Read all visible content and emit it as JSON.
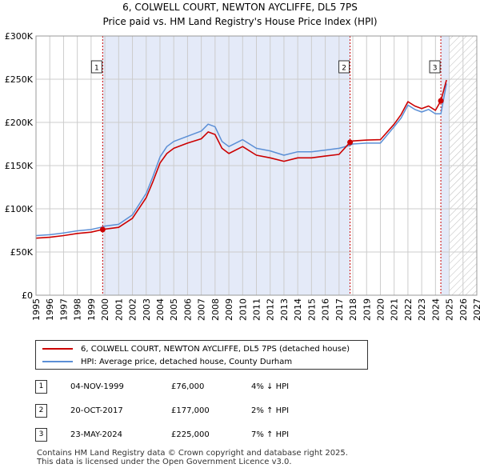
{
  "chart_data": {
    "type": "line",
    "title": "6, COLWELL COURT, NEWTON AYCLIFFE, DL5 7PS",
    "subtitle": "Price paid vs. HM Land Registry's House Price Index (HPI)",
    "xlim": [
      1995,
      2027
    ],
    "ylim": [
      0,
      300000
    ],
    "y_ticks": [
      {
        "value": 0,
        "label": "£0"
      },
      {
        "value": 50000,
        "label": "£50K"
      },
      {
        "value": 100000,
        "label": "£100K"
      },
      {
        "value": 150000,
        "label": "£150K"
      },
      {
        "value": 200000,
        "label": "£200K"
      },
      {
        "value": 250000,
        "label": "£250K"
      },
      {
        "value": 300000,
        "label": "£300K"
      }
    ],
    "x_ticks": [
      "1995",
      "1996",
      "1997",
      "1998",
      "1999",
      "2000",
      "2001",
      "2002",
      "2003",
      "2004",
      "2005",
      "2006",
      "2007",
      "2008",
      "2009",
      "2010",
      "2011",
      "2012",
      "2013",
      "2014",
      "2015",
      "2016",
      "2017",
      "2018",
      "2019",
      "2020",
      "2021",
      "2022",
      "2023",
      "2024",
      "2025",
      "2026",
      "2027"
    ],
    "grid": true,
    "shaded_periods": [
      [
        1999.84,
        2017.8
      ],
      [
        2024.39,
        2025.0
      ]
    ],
    "hatched_after": 2025.0,
    "series": [
      {
        "name": "HPI: Average price, detached house, County Durham",
        "color": "#5b8fd6",
        "x": [
          1995,
          1996,
          1997,
          1998,
          1999,
          1999.84,
          2000,
          2001,
          2002,
          2003,
          2003.5,
          2004,
          2004.5,
          2005,
          2006,
          2007,
          2007.5,
          2008,
          2008.5,
          2009,
          2010,
          2011,
          2012,
          2013,
          2014,
          2015,
          2016,
          2017,
          2017.8,
          2018,
          2019,
          2020,
          2021,
          2021.5,
          2022,
          2022.5,
          2023,
          2023.5,
          2024,
          2024.39,
          2024.8
        ],
        "values": [
          69000,
          70000,
          72000,
          74500,
          76000,
          79000,
          80000,
          82000,
          93000,
          118000,
          138000,
          160000,
          172000,
          178000,
          184000,
          190000,
          198000,
          195000,
          178000,
          172000,
          180000,
          170000,
          167000,
          162000,
          166000,
          166000,
          168000,
          170000,
          173500,
          175000,
          176000,
          176000,
          195000,
          205000,
          220000,
          215000,
          212000,
          215000,
          210000,
          210000,
          245000
        ]
      },
      {
        "name": "6, COLWELL COURT, NEWTON AYCLIFFE, DL5 7PS (detached house)",
        "color": "#cc0000",
        "x": [
          1995,
          1996,
          1997,
          1998,
          1999,
          1999.84,
          2000,
          2001,
          2002,
          2003,
          2003.5,
          2004,
          2004.5,
          2005,
          2006,
          2007,
          2007.5,
          2008,
          2008.5,
          2009,
          2010,
          2011,
          2012,
          2013,
          2014,
          2015,
          2016,
          2017,
          2017.8,
          2018,
          2019,
          2020,
          2021,
          2021.5,
          2022,
          2022.5,
          2023,
          2023.5,
          2024,
          2024.39,
          2024.8
        ],
        "values": [
          66000,
          67000,
          69000,
          71500,
          73000,
          76000,
          76500,
          78500,
          89000,
          113000,
          132000,
          153000,
          164000,
          170000,
          176000,
          181000,
          189000,
          186000,
          170000,
          164000,
          172000,
          162000,
          159000,
          155000,
          159000,
          159000,
          161000,
          163000,
          177000,
          178500,
          179500,
          180000,
          198000,
          209000,
          224000,
          219000,
          216000,
          219000,
          214000,
          225000,
          249000
        ]
      }
    ],
    "sales": [
      {
        "num": "1",
        "x": 1999.84,
        "value": 76000
      },
      {
        "num": "2",
        "x": 2017.8,
        "value": 177000
      },
      {
        "num": "3",
        "x": 2024.39,
        "value": 225000
      }
    ]
  },
  "legend": {
    "property": "6, COLWELL COURT, NEWTON AYCLIFFE, DL5 7PS (detached house)",
    "hpi": "HPI: Average price, detached house, County Durham"
  },
  "sales_table": [
    {
      "num": "1",
      "date": "04-NOV-1999",
      "price": "£76,000",
      "hpi": "4% ↓ HPI"
    },
    {
      "num": "2",
      "date": "20-OCT-2017",
      "price": "£177,000",
      "hpi": "2% ↑ HPI"
    },
    {
      "num": "3",
      "date": "23-MAY-2024",
      "price": "£225,000",
      "hpi": "7% ↑ HPI"
    }
  ],
  "footer": {
    "line1": "Contains HM Land Registry data © Crown copyright and database right 2025.",
    "line2": "This data is licensed under the Open Government Licence v3.0."
  },
  "colors": {
    "property": "#cc0000",
    "hpi": "#5b8fd6",
    "shade": "#e4eaf8",
    "grid": "#cccccc",
    "vline": "#cc0000"
  }
}
